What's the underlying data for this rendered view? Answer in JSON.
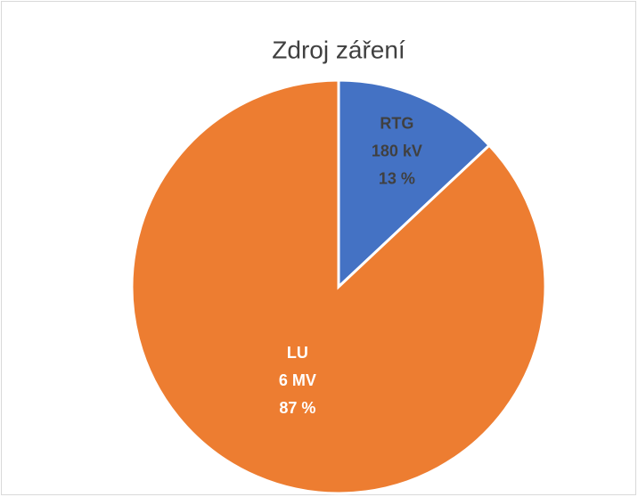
{
  "chart_data": {
    "type": "pie",
    "title": "Zdroj záření",
    "categories": [
      [
        "RTG",
        "180 kV"
      ],
      [
        "LU",
        "6 MV"
      ]
    ],
    "values": [
      13,
      87
    ],
    "value_labels": [
      "13 %",
      "87 %"
    ],
    "colors": [
      "#4472c4",
      "#ed7d31"
    ]
  }
}
